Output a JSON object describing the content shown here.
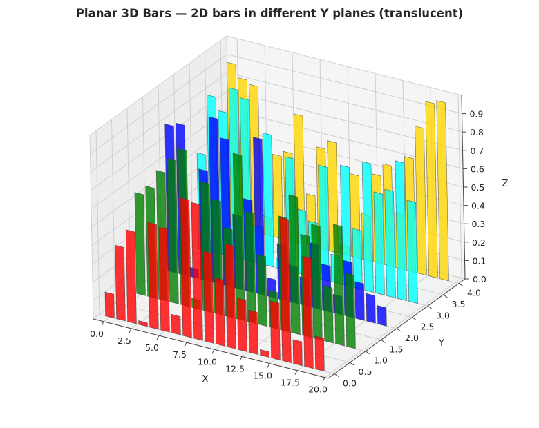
{
  "chart_data": {
    "type": "bar3d",
    "title": "Planar 3D Bars — 2D bars in different Y planes (translucent)",
    "xlabel": "X",
    "ylabel": "Y",
    "zlabel": "Z",
    "x": [
      0,
      1,
      2,
      3,
      4,
      5,
      6,
      7,
      8,
      9,
      10,
      11,
      12,
      13,
      14,
      15,
      16,
      17,
      18,
      19
    ],
    "xticks": [
      "0.0",
      "2.5",
      "5.0",
      "7.5",
      "10.0",
      "12.5",
      "15.0",
      "17.5",
      "20.0"
    ],
    "yticks": [
      "0.0",
      "0.5",
      "1.0",
      "1.5",
      "2.0",
      "2.5",
      "3.0",
      "3.5",
      "4.0"
    ],
    "zticks": [
      "0.0",
      "0.1",
      "0.2",
      "0.3",
      "0.4",
      "0.5",
      "0.6",
      "0.7",
      "0.8",
      "0.9"
    ],
    "xlim": [
      -0.94,
      20.31
    ],
    "ylim": [
      -0.2,
      4.2
    ],
    "zlim": [
      0,
      1.0
    ],
    "grid": true,
    "series": [
      {
        "y": 4,
        "color": "#ffd700",
        "values": [
          0.89,
          0.82,
          0.8,
          0.1,
          0.45,
          0.48,
          0.7,
          0.28,
          0.55,
          0.6,
          0.05,
          0.45,
          0.25,
          0.48,
          0.55,
          0.3,
          0.62,
          0.8,
          0.95,
          0.97
        ]
      },
      {
        "y": 3,
        "color": "#00ffff",
        "values": [
          0.52,
          0.85,
          0.78,
          0.92,
          0.88,
          0.2,
          0.72,
          0.05,
          0.62,
          0.35,
          0.3,
          0.62,
          0.15,
          0.65,
          0.32,
          0.7,
          0.55,
          0.58,
          0.75,
          0.55
        ]
      },
      {
        "y": 2,
        "color": "#0000ff",
        "values": [
          0.8,
          0.82,
          0.05,
          0.6,
          0.9,
          0.8,
          0.4,
          0.5,
          0.85,
          0.1,
          0.3,
          0.2,
          0.15,
          0.35,
          0.25,
          0.1,
          0.3,
          0.2,
          0.15,
          0.1
        ]
      },
      {
        "y": 1,
        "color": "#008000",
        "values": [
          0.55,
          0.6,
          0.7,
          0.78,
          0.85,
          0.05,
          0.7,
          0.62,
          0.48,
          0.9,
          0.6,
          0.38,
          0.2,
          0.62,
          0.75,
          0.55,
          0.62,
          0.3,
          0.65,
          0.4
        ]
      },
      {
        "y": 0,
        "color": "#ff0000",
        "values": [
          0.13,
          0.4,
          0.5,
          0.02,
          0.57,
          0.56,
          0.1,
          0.75,
          0.74,
          0.49,
          0.36,
          0.56,
          0.28,
          0.23,
          0.03,
          0.31,
          0.78,
          0.13,
          0.6,
          0.18
        ]
      }
    ],
    "bar_alpha": 0.8
  }
}
